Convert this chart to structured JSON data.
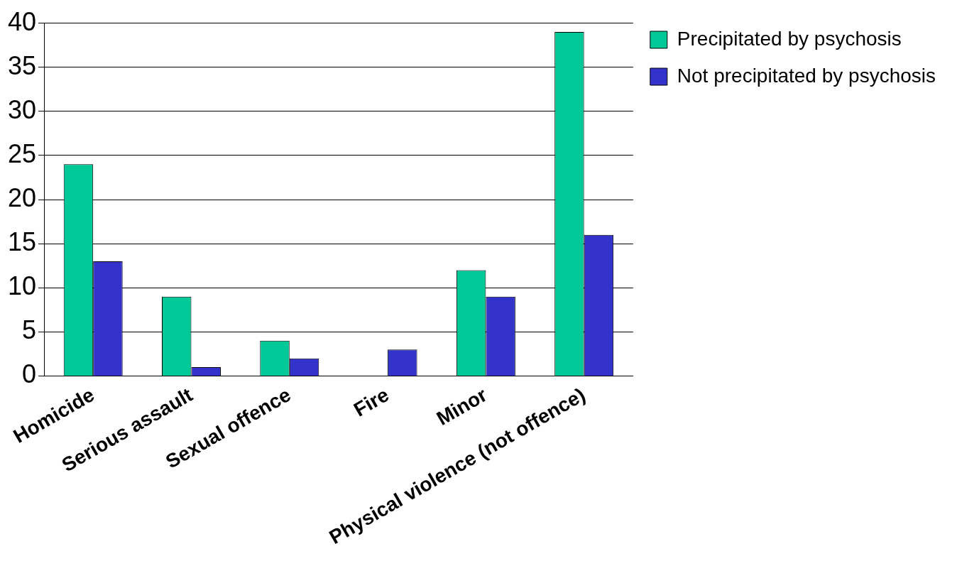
{
  "chart_data": {
    "type": "bar",
    "categories": [
      "Homicide",
      "Serious assault",
      "Sexual offence",
      "Fire",
      "Minor",
      "Physical violence (not offence)"
    ],
    "series": [
      {
        "name": "Precipitated by psychosis",
        "color": "#00c896",
        "values": [
          24,
          9,
          4,
          0,
          12,
          39
        ]
      },
      {
        "name": "Not precipitated by psychosis",
        "color": "#3333cc",
        "values": [
          13,
          1,
          2,
          3,
          9,
          16
        ]
      }
    ],
    "ylim": [
      0,
      40
    ],
    "yticks": [
      0,
      5,
      10,
      15,
      20,
      25,
      30,
      35,
      40
    ],
    "grid": "y",
    "legend": "top right"
  }
}
